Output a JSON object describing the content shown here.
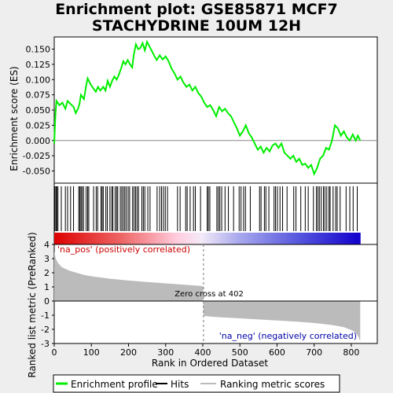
{
  "title_line1": "Enrichment plot: GSE85871 MCF7",
  "title_line2": "STACHYDRINE 10UM 12H",
  "chart_data": {
    "type": "line",
    "es_panel": {
      "ylabel": "Enrichment score (ES)",
      "ylim": [
        -0.07,
        0.17
      ],
      "yticks": [
        -0.05,
        -0.025,
        0.0,
        0.025,
        0.05,
        0.075,
        0.1,
        0.125,
        0.15
      ],
      "ytick_labels": [
        "-0.050",
        "-0.025",
        "0.000",
        "0.025",
        "0.050",
        "0.075",
        "0.100",
        "0.125",
        "0.150"
      ],
      "series_color": "#00ee00",
      "es_points": [
        [
          0,
          -0.005
        ],
        [
          3,
          0.04
        ],
        [
          6,
          0.065
        ],
        [
          14,
          0.058
        ],
        [
          22,
          0.062
        ],
        [
          30,
          0.052
        ],
        [
          36,
          0.065
        ],
        [
          44,
          0.06
        ],
        [
          52,
          0.055
        ],
        [
          58,
          0.045
        ],
        [
          64,
          0.052
        ],
        [
          68,
          0.06
        ],
        [
          72,
          0.075
        ],
        [
          80,
          0.068
        ],
        [
          86,
          0.09
        ],
        [
          90,
          0.102
        ],
        [
          98,
          0.092
        ],
        [
          106,
          0.085
        ],
        [
          112,
          0.08
        ],
        [
          118,
          0.088
        ],
        [
          124,
          0.082
        ],
        [
          132,
          0.088
        ],
        [
          138,
          0.082
        ],
        [
          144,
          0.098
        ],
        [
          150,
          0.088
        ],
        [
          156,
          0.098
        ],
        [
          162,
          0.105
        ],
        [
          168,
          0.1
        ],
        [
          174,
          0.108
        ],
        [
          180,
          0.118
        ],
        [
          186,
          0.13
        ],
        [
          192,
          0.125
        ],
        [
          198,
          0.132
        ],
        [
          204,
          0.125
        ],
        [
          210,
          0.12
        ],
        [
          214,
          0.14
        ],
        [
          220,
          0.158
        ],
        [
          226,
          0.15
        ],
        [
          232,
          0.152
        ],
        [
          238,
          0.16
        ],
        [
          244,
          0.148
        ],
        [
          250,
          0.162
        ],
        [
          256,
          0.155
        ],
        [
          262,
          0.148
        ],
        [
          270,
          0.138
        ],
        [
          276,
          0.132
        ],
        [
          284,
          0.14
        ],
        [
          292,
          0.133
        ],
        [
          300,
          0.138
        ],
        [
          308,
          0.13
        ],
        [
          316,
          0.118
        ],
        [
          324,
          0.11
        ],
        [
          332,
          0.1
        ],
        [
          340,
          0.105
        ],
        [
          348,
          0.095
        ],
        [
          356,
          0.088
        ],
        [
          364,
          0.092
        ],
        [
          372,
          0.082
        ],
        [
          380,
          0.088
        ],
        [
          388,
          0.078
        ],
        [
          396,
          0.072
        ],
        [
          404,
          0.062
        ],
        [
          412,
          0.055
        ],
        [
          420,
          0.058
        ],
        [
          428,
          0.05
        ],
        [
          436,
          0.04
        ],
        [
          444,
          0.055
        ],
        [
          452,
          0.048
        ],
        [
          460,
          0.052
        ],
        [
          468,
          0.045
        ],
        [
          476,
          0.04
        ],
        [
          484,
          0.03
        ],
        [
          492,
          0.02
        ],
        [
          500,
          0.008
        ],
        [
          508,
          0.015
        ],
        [
          516,
          0.025
        ],
        [
          524,
          0.012
        ],
        [
          532,
          0.005
        ],
        [
          540,
          -0.005
        ],
        [
          548,
          -0.015
        ],
        [
          556,
          -0.01
        ],
        [
          564,
          -0.02
        ],
        [
          572,
          -0.012
        ],
        [
          580,
          -0.018
        ],
        [
          588,
          -0.008
        ],
        [
          596,
          -0.005
        ],
        [
          604,
          -0.012
        ],
        [
          612,
          -0.005
        ],
        [
          620,
          -0.02
        ],
        [
          628,
          -0.025
        ],
        [
          636,
          -0.03
        ],
        [
          644,
          -0.025
        ],
        [
          652,
          -0.035
        ],
        [
          660,
          -0.03
        ],
        [
          668,
          -0.04
        ],
        [
          676,
          -0.038
        ],
        [
          684,
          -0.045
        ],
        [
          692,
          -0.04
        ],
        [
          700,
          -0.055
        ],
        [
          708,
          -0.045
        ],
        [
          716,
          -0.03
        ],
        [
          724,
          -0.025
        ],
        [
          732,
          -0.012
        ],
        [
          740,
          -0.015
        ],
        [
          748,
          0.0
        ],
        [
          756,
          0.025
        ],
        [
          764,
          0.02
        ],
        [
          772,
          0.008
        ],
        [
          780,
          0.015
        ],
        [
          788,
          0.005
        ],
        [
          796,
          0.0
        ],
        [
          804,
          0.01
        ],
        [
          812,
          0.0
        ],
        [
          818,
          0.008
        ],
        [
          824,
          0.0
        ]
      ],
      "zero_line": 0.0
    },
    "hits_panel": {
      "hit_ranks": [
        2,
        5,
        7,
        10,
        19,
        30,
        36,
        44,
        52,
        66,
        69,
        72,
        75,
        79,
        86,
        90,
        93,
        106,
        113,
        117,
        126,
        129,
        132,
        139,
        143,
        150,
        155,
        158,
        164,
        168,
        171,
        178,
        182,
        186,
        190,
        194,
        199,
        203,
        211,
        215,
        219,
        223,
        227,
        236,
        240,
        244,
        252,
        258,
        277,
        284,
        289,
        294,
        299,
        305,
        332,
        339,
        354,
        358,
        366,
        375,
        380,
        394,
        412,
        415,
        419,
        438,
        442,
        446,
        451,
        460,
        469,
        483,
        498,
        503,
        510,
        515,
        528,
        553,
        557,
        566,
        570,
        578,
        592,
        596,
        601,
        608,
        615,
        627,
        645,
        651,
        664,
        676,
        684,
        698,
        706,
        710,
        714,
        719,
        725,
        729,
        734,
        740,
        743,
        751,
        758,
        762,
        770,
        786,
        796,
        805,
        816
      ]
    },
    "metric_panel": {
      "ylabel": "Ranked list metric (PreRanked)",
      "xlabel": "Rank in Ordered Dataset",
      "ylim": [
        -3,
        4
      ],
      "yticks": [
        -3,
        -2,
        -1,
        0,
        1,
        2,
        3,
        4
      ],
      "xlim": [
        0,
        870
      ],
      "xticks": [
        0,
        100,
        200,
        300,
        400,
        500,
        600,
        700,
        800
      ],
      "zero_cross_rank": 402,
      "zero_cross_label": "Zero cross at 402",
      "pos_label": "'na_pos' (positively correlated)",
      "neg_label": "'na_neg' (negatively correlated)",
      "n_ranks": 825,
      "metric_profile": [
        [
          0,
          3.5
        ],
        [
          4,
          3.0
        ],
        [
          10,
          2.7
        ],
        [
          20,
          2.4
        ],
        [
          40,
          2.15
        ],
        [
          60,
          2.0
        ],
        [
          80,
          1.85
        ],
        [
          100,
          1.75
        ],
        [
          150,
          1.58
        ],
        [
          200,
          1.45
        ],
        [
          250,
          1.35
        ],
        [
          300,
          1.25
        ],
        [
          350,
          1.15
        ],
        [
          380,
          1.1
        ],
        [
          401,
          1.05
        ],
        [
          402,
          -1.05
        ],
        [
          420,
          -1.1
        ],
        [
          450,
          -1.15
        ],
        [
          500,
          -1.22
        ],
        [
          550,
          -1.3
        ],
        [
          600,
          -1.38
        ],
        [
          650,
          -1.45
        ],
        [
          700,
          -1.55
        ],
        [
          750,
          -1.7
        ],
        [
          780,
          -1.85
        ],
        [
          800,
          -2.05
        ],
        [
          810,
          -2.2
        ],
        [
          818,
          -2.45
        ],
        [
          822,
          -2.7
        ],
        [
          824,
          -2.8
        ]
      ]
    },
    "legend": {
      "items": [
        {
          "label": "Enrichment profile",
          "color": "#00ee00"
        },
        {
          "label": "Hits",
          "color": "#000000"
        },
        {
          "label": "Ranking metric scores",
          "color": "#bbbbbb"
        }
      ]
    }
  }
}
